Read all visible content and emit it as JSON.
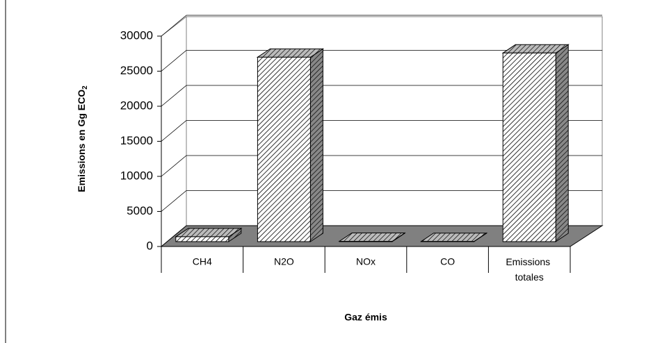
{
  "chart_data": {
    "type": "bar3d",
    "y_label": {
      "text": "Emissions en Gg ECO",
      "subscript": "2"
    },
    "x_label": "Gaz émis",
    "categories": [
      "CH4",
      "N2O",
      "NOx",
      "CO",
      "Emissions totales"
    ],
    "values": [
      700,
      26300,
      50,
      30,
      26900
    ],
    "color": "#ffffff",
    "ylim": [
      0,
      30000
    ],
    "yticks": [
      0,
      5000,
      10000,
      15000,
      20000,
      25000,
      30000
    ],
    "grid": true
  }
}
